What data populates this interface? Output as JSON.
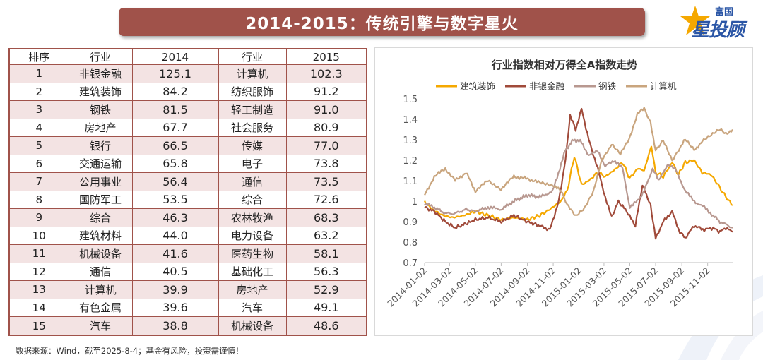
{
  "title": "2014-2015：传统引擎与数字星火",
  "logo": {
    "top_text": "富国",
    "main_text": "星投顾"
  },
  "table": {
    "headers": [
      "排序",
      "行业",
      "2014",
      "行业",
      "2015"
    ],
    "rows": [
      {
        "rank": "1",
        "ind2014": "非银金融",
        "val2014": "125.1",
        "ind2015": "计算机",
        "val2015": "102.3"
      },
      {
        "rank": "2",
        "ind2014": "建筑装饰",
        "val2014": "84.2",
        "ind2015": "纺织服饰",
        "val2015": "91.2"
      },
      {
        "rank": "3",
        "ind2014": "钢铁",
        "val2014": "81.5",
        "ind2015": "轻工制造",
        "val2015": "91.0"
      },
      {
        "rank": "4",
        "ind2014": "房地产",
        "val2014": "67.7",
        "ind2015": "社会服务",
        "val2015": "80.9"
      },
      {
        "rank": "5",
        "ind2014": "银行",
        "val2014": "66.5",
        "ind2015": "传媒",
        "val2015": "77.0"
      },
      {
        "rank": "6",
        "ind2014": "交通运输",
        "val2014": "65.8",
        "ind2015": "电子",
        "val2015": "73.8"
      },
      {
        "rank": "7",
        "ind2014": "公用事业",
        "val2014": "56.4",
        "ind2015": "通信",
        "val2015": "73.5"
      },
      {
        "rank": "8",
        "ind2014": "国防军工",
        "val2014": "53.5",
        "ind2015": "综合",
        "val2015": "72.6"
      },
      {
        "rank": "9",
        "ind2014": "综合",
        "val2014": "46.3",
        "ind2015": "农林牧渔",
        "val2015": "68.3"
      },
      {
        "rank": "10",
        "ind2014": "建筑材料",
        "val2014": "44.0",
        "ind2015": "电力设备",
        "val2015": "63.2"
      },
      {
        "rank": "11",
        "ind2014": "机械设备",
        "val2014": "41.6",
        "ind2015": "医药生物",
        "val2015": "58.1"
      },
      {
        "rank": "12",
        "ind2014": "通信",
        "val2014": "40.5",
        "ind2015": "基础化工",
        "val2015": "56.3"
      },
      {
        "rank": "13",
        "ind2014": "计算机",
        "val2014": "39.9",
        "ind2015": "房地产",
        "val2015": "52.9"
      },
      {
        "rank": "14",
        "ind2014": "有色金属",
        "val2014": "39.6",
        "ind2015": "汽车",
        "val2015": "49.1"
      },
      {
        "rank": "15",
        "ind2014": "汽车",
        "val2014": "38.8",
        "ind2015": "机械设备",
        "val2015": "48.6"
      }
    ]
  },
  "chart_data": {
    "type": "line",
    "title": "行业指数相对万得全A指数走势",
    "xlabel": "",
    "ylabel": "",
    "ylim": [
      0.7,
      1.5
    ],
    "yticks": [
      "1.5",
      "1.4",
      "1.3",
      "1.2",
      "1.1",
      "1",
      "0.9",
      "0.8",
      "0.7"
    ],
    "ytick_values": [
      1.5,
      1.4,
      1.3,
      1.2,
      1.1,
      1.0,
      0.9,
      0.8,
      0.7
    ],
    "x_range": [
      "2014-01-02",
      "2015-12-31"
    ],
    "x_ticks": [
      "2014-01-02",
      "2014-03-02",
      "2014-05-02",
      "2014-07-02",
      "2014-09-02",
      "2014-11-02",
      "2015-01-02",
      "2015-03-02",
      "2015-05-02",
      "2015-07-02",
      "2015-09-02",
      "2015-11-02"
    ],
    "legend_position": "top",
    "series": [
      {
        "name": "建筑装饰",
        "color": "#f5a800",
        "points": [
          [
            "2014-01-02",
            1.0
          ],
          [
            "2014-01-20",
            0.96
          ],
          [
            "2014-02-15",
            0.93
          ],
          [
            "2014-03-10",
            0.92
          ],
          [
            "2014-04-05",
            0.93
          ],
          [
            "2014-05-02",
            0.95
          ],
          [
            "2014-06-01",
            0.93
          ],
          [
            "2014-07-02",
            0.91
          ],
          [
            "2014-08-01",
            0.92
          ],
          [
            "2014-09-02",
            0.91
          ],
          [
            "2014-10-01",
            0.93
          ],
          [
            "2014-10-25",
            0.96
          ],
          [
            "2014-11-20",
            1.0
          ],
          [
            "2014-12-05",
            1.05
          ],
          [
            "2014-12-22",
            1.22
          ],
          [
            "2015-01-08",
            1.08
          ],
          [
            "2015-01-25",
            1.1
          ],
          [
            "2015-02-15",
            1.14
          ],
          [
            "2015-03-05",
            1.12
          ],
          [
            "2015-03-25",
            1.15
          ],
          [
            "2015-04-15",
            1.19
          ],
          [
            "2015-05-02",
            1.11
          ],
          [
            "2015-05-20",
            1.16
          ],
          [
            "2015-06-05",
            1.15
          ],
          [
            "2015-06-22",
            1.27
          ],
          [
            "2015-07-02",
            1.14
          ],
          [
            "2015-07-20",
            1.12
          ],
          [
            "2015-08-10",
            1.19
          ],
          [
            "2015-08-25",
            1.13
          ],
          [
            "2015-09-10",
            1.19
          ],
          [
            "2015-10-01",
            1.2
          ],
          [
            "2015-10-20",
            1.14
          ],
          [
            "2015-11-10",
            1.13
          ],
          [
            "2015-11-30",
            1.07
          ],
          [
            "2015-12-15",
            1.02
          ],
          [
            "2015-12-31",
            0.98
          ]
        ]
      },
      {
        "name": "非银金融",
        "color": "#a04a3a",
        "points": [
          [
            "2014-01-02",
            0.97
          ],
          [
            "2014-01-25",
            0.95
          ],
          [
            "2014-02-20",
            0.9
          ],
          [
            "2014-03-15",
            0.87
          ],
          [
            "2014-04-10",
            0.89
          ],
          [
            "2014-05-02",
            0.91
          ],
          [
            "2014-06-01",
            0.92
          ],
          [
            "2014-07-02",
            0.9
          ],
          [
            "2014-08-01",
            0.93
          ],
          [
            "2014-09-02",
            0.9
          ],
          [
            "2014-10-01",
            0.88
          ],
          [
            "2014-10-25",
            0.86
          ],
          [
            "2014-11-15",
            1.0
          ],
          [
            "2014-12-01",
            1.2
          ],
          [
            "2014-12-12",
            1.42
          ],
          [
            "2014-12-25",
            1.35
          ],
          [
            "2015-01-08",
            1.45
          ],
          [
            "2015-01-25",
            1.3
          ],
          [
            "2015-02-15",
            1.16
          ],
          [
            "2015-03-05",
            1.02
          ],
          [
            "2015-03-20",
            0.92
          ],
          [
            "2015-04-05",
            1.0
          ],
          [
            "2015-04-25",
            0.95
          ],
          [
            "2015-05-15",
            0.88
          ],
          [
            "2015-06-01",
            1.08
          ],
          [
            "2015-06-20",
            0.98
          ],
          [
            "2015-07-02",
            0.82
          ],
          [
            "2015-07-20",
            0.9
          ],
          [
            "2015-08-10",
            0.95
          ],
          [
            "2015-08-25",
            0.86
          ],
          [
            "2015-09-10",
            0.82
          ],
          [
            "2015-10-01",
            0.88
          ],
          [
            "2015-10-25",
            0.86
          ],
          [
            "2015-11-15",
            0.87
          ],
          [
            "2015-12-01",
            0.85
          ],
          [
            "2015-12-15",
            0.87
          ],
          [
            "2015-12-31",
            0.85
          ]
        ]
      },
      {
        "name": "钢铁",
        "color": "#b89890",
        "points": [
          [
            "2014-01-02",
            0.99
          ],
          [
            "2014-01-25",
            0.97
          ],
          [
            "2014-02-20",
            0.94
          ],
          [
            "2014-03-15",
            0.94
          ],
          [
            "2014-04-10",
            0.96
          ],
          [
            "2014-05-02",
            0.95
          ],
          [
            "2014-06-01",
            0.97
          ],
          [
            "2014-07-02",
            0.96
          ],
          [
            "2014-08-01",
            1.0
          ],
          [
            "2014-09-02",
            1.03
          ],
          [
            "2014-10-01",
            1.02
          ],
          [
            "2014-11-01",
            1.05
          ],
          [
            "2014-12-01",
            1.25
          ],
          [
            "2014-12-20",
            1.3
          ],
          [
            "2015-01-08",
            1.29
          ],
          [
            "2015-01-25",
            1.22
          ],
          [
            "2015-02-15",
            1.25
          ],
          [
            "2015-03-05",
            1.17
          ],
          [
            "2015-03-25",
            1.2
          ],
          [
            "2015-04-15",
            1.16
          ],
          [
            "2015-05-02",
            0.97
          ],
          [
            "2015-05-20",
            1.0
          ],
          [
            "2015-06-05",
            1.05
          ],
          [
            "2015-06-25",
            1.16
          ],
          [
            "2015-07-10",
            1.1
          ],
          [
            "2015-07-30",
            1.18
          ],
          [
            "2015-08-20",
            1.15
          ],
          [
            "2015-09-10",
            1.05
          ],
          [
            "2015-10-01",
            1.0
          ],
          [
            "2015-10-25",
            0.97
          ],
          [
            "2015-11-15",
            0.93
          ],
          [
            "2015-12-01",
            0.9
          ],
          [
            "2015-12-31",
            0.87
          ]
        ]
      },
      {
        "name": "计算机",
        "color": "#c9a57e",
        "points": [
          [
            "2014-01-02",
            1.03
          ],
          [
            "2014-01-25",
            1.12
          ],
          [
            "2014-02-20",
            1.16
          ],
          [
            "2014-03-15",
            1.1
          ],
          [
            "2014-04-10",
            1.14
          ],
          [
            "2014-05-02",
            1.05
          ],
          [
            "2014-06-01",
            1.1
          ],
          [
            "2014-07-02",
            1.06
          ],
          [
            "2014-08-01",
            1.12
          ],
          [
            "2014-09-02",
            1.11
          ],
          [
            "2014-10-01",
            1.09
          ],
          [
            "2014-11-01",
            1.08
          ],
          [
            "2014-11-20",
            1.05
          ],
          [
            "2014-12-05",
            0.98
          ],
          [
            "2014-12-25",
            0.93
          ],
          [
            "2015-01-15",
            0.97
          ],
          [
            "2015-02-05",
            1.05
          ],
          [
            "2015-02-25",
            1.2
          ],
          [
            "2015-03-20",
            1.28
          ],
          [
            "2015-04-10",
            1.23
          ],
          [
            "2015-04-30",
            1.3
          ],
          [
            "2015-05-20",
            1.43
          ],
          [
            "2015-06-05",
            1.45
          ],
          [
            "2015-06-20",
            1.38
          ],
          [
            "2015-07-02",
            1.25
          ],
          [
            "2015-07-20",
            1.3
          ],
          [
            "2015-08-10",
            1.2
          ],
          [
            "2015-08-25",
            1.25
          ],
          [
            "2015-09-10",
            1.3
          ],
          [
            "2015-10-01",
            1.25
          ],
          [
            "2015-10-20",
            1.29
          ],
          [
            "2015-11-10",
            1.32
          ],
          [
            "2015-12-01",
            1.35
          ],
          [
            "2015-12-15",
            1.33
          ],
          [
            "2015-12-31",
            1.35
          ]
        ]
      }
    ]
  },
  "source_note": "数据来源：Wind，截至2025-8-4；基金有风险，投资需谨慎！"
}
